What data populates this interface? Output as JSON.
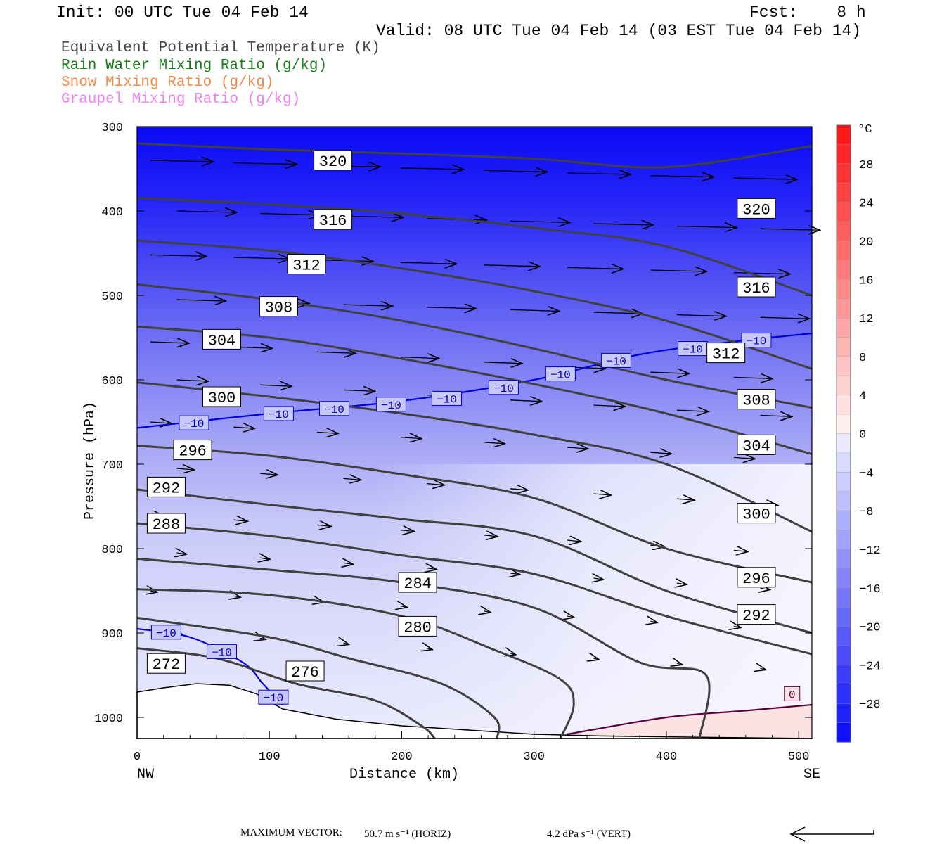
{
  "header": {
    "init": "Init: 00 UTC Tue 04 Feb 14",
    "fcst": "Fcst:    8 h",
    "valid": "Valid: 08 UTC Tue 04 Feb 14 (03 EST Tue 04 Feb 14)"
  },
  "legend": [
    {
      "label": "Equivalent Potential Temperature (K)",
      "color": "#444444"
    },
    {
      "label": "Rain Water Mixing Ratio (g/kg)",
      "color": "#1a7f1a"
    },
    {
      "label": "Snow Mixing Ratio (g/kg)",
      "color": "#f08a4b"
    },
    {
      "label": "Graupel Mixing Ratio (g/kg)",
      "color": "#ee82ee"
    }
  ],
  "chart_data": {
    "type": "cross-section",
    "xlabel": "Distance (km)",
    "ylabel": "Pressure (hPa)",
    "xlim": [
      0,
      510
    ],
    "ylim": [
      1025,
      300
    ],
    "x_ticks": [
      "0",
      "100",
      "200",
      "300",
      "400",
      "500"
    ],
    "x_tick_values": [
      0,
      100,
      200,
      300,
      400,
      500
    ],
    "y_ticks": [
      "300",
      "400",
      "500",
      "600",
      "700",
      "800",
      "900",
      "1000"
    ],
    "y_tick_values": [
      300,
      400,
      500,
      600,
      700,
      800,
      900,
      1000
    ],
    "left_end_label": "NW",
    "right_end_label": "SE",
    "colorbar": {
      "unit": "°C",
      "labels": [
        "28",
        "24",
        "20",
        "16",
        "12",
        "8",
        "4",
        "0",
        "−4",
        "−8",
        "−12",
        "−16",
        "−20",
        "−24",
        "−28"
      ],
      "label_values": [
        28,
        24,
        20,
        16,
        12,
        8,
        4,
        0,
        -4,
        -8,
        -12,
        -16,
        -20,
        -24,
        -28
      ],
      "range": [
        -32,
        32
      ]
    },
    "theta_e_contours": [
      {
        "label": "320",
        "points": [
          [
            0,
            320
          ],
          [
            100,
            327
          ],
          [
            200,
            332
          ],
          [
            300,
            338
          ],
          [
            400,
            348
          ],
          [
            510,
            323
          ]
        ]
      },
      {
        "label": "316",
        "points": [
          [
            0,
            385
          ],
          [
            100,
            392
          ],
          [
            200,
            403
          ],
          [
            300,
            420
          ],
          [
            400,
            442
          ],
          [
            510,
            500
          ]
        ]
      },
      {
        "label": "312",
        "points": [
          [
            0,
            435
          ],
          [
            100,
            447
          ],
          [
            200,
            468
          ],
          [
            300,
            495
          ],
          [
            400,
            530
          ],
          [
            510,
            587
          ]
        ]
      },
      {
        "label": "308",
        "points": [
          [
            0,
            487
          ],
          [
            100,
            505
          ],
          [
            200,
            530
          ],
          [
            300,
            563
          ],
          [
            400,
            600
          ],
          [
            510,
            633
          ]
        ]
      },
      {
        "label": "304",
        "points": [
          [
            0,
            537
          ],
          [
            100,
            550
          ],
          [
            200,
            575
          ],
          [
            300,
            605
          ],
          [
            400,
            640
          ],
          [
            510,
            688
          ]
        ]
      },
      {
        "label": "300",
        "points": [
          [
            0,
            603
          ],
          [
            100,
            620
          ],
          [
            200,
            640
          ],
          [
            300,
            665
          ],
          [
            400,
            700
          ],
          [
            510,
            780
          ]
        ]
      },
      {
        "label": "296",
        "points": [
          [
            0,
            678
          ],
          [
            100,
            690
          ],
          [
            200,
            712
          ],
          [
            300,
            740
          ],
          [
            400,
            800
          ],
          [
            510,
            840
          ]
        ]
      },
      {
        "label": "292",
        "points": [
          [
            0,
            730
          ],
          [
            100,
            748
          ],
          [
            200,
            765
          ],
          [
            300,
            785
          ],
          [
            400,
            850
          ],
          [
            510,
            900
          ]
        ]
      },
      {
        "label": "288",
        "points": [
          [
            0,
            770
          ],
          [
            100,
            785
          ],
          [
            200,
            808
          ],
          [
            300,
            830
          ],
          [
            400,
            880
          ],
          [
            510,
            925
          ]
        ]
      },
      {
        "label": "284",
        "points": [
          [
            0,
            812
          ],
          [
            100,
            825
          ],
          [
            200,
            840
          ],
          [
            300,
            870
          ],
          [
            380,
            935
          ],
          [
            430,
            950
          ],
          [
            425,
            1025
          ]
        ]
      },
      {
        "label": "280",
        "points": [
          [
            0,
            848
          ],
          [
            100,
            855
          ],
          [
            200,
            880
          ],
          [
            270,
            920
          ],
          [
            320,
            955
          ],
          [
            330,
            985
          ],
          [
            320,
            1025
          ]
        ]
      },
      {
        "label": "276",
        "points": [
          [
            0,
            882
          ],
          [
            100,
            905
          ],
          [
            160,
            930
          ],
          [
            230,
            960
          ],
          [
            270,
            1000
          ],
          [
            272,
            1025
          ]
        ]
      },
      {
        "label": "272",
        "points": [
          [
            0,
            918
          ],
          [
            60,
            930
          ],
          [
            120,
            960
          ],
          [
            180,
            980
          ],
          [
            215,
            1010
          ],
          [
            225,
            1025
          ]
        ]
      }
    ],
    "theta_e_label_positions": [
      {
        "label": "320",
        "x": 148,
        "p": 340
      },
      {
        "label": "320",
        "x": 468,
        "p": 397
      },
      {
        "label": "316",
        "x": 148,
        "p": 410
      },
      {
        "label": "316",
        "x": 468,
        "p": 490
      },
      {
        "label": "312",
        "x": 128,
        "p": 463
      },
      {
        "label": "312",
        "x": 445,
        "p": 568
      },
      {
        "label": "308",
        "x": 107,
        "p": 513
      },
      {
        "label": "308",
        "x": 468,
        "p": 623
      },
      {
        "label": "304",
        "x": 64,
        "p": 552
      },
      {
        "label": "304",
        "x": 468,
        "p": 677
      },
      {
        "label": "300",
        "x": 64,
        "p": 620
      },
      {
        "label": "300",
        "x": 468,
        "p": 758
      },
      {
        "label": "296",
        "x": 42,
        "p": 683
      },
      {
        "label": "296",
        "x": 468,
        "p": 834
      },
      {
        "label": "292",
        "x": 22,
        "p": 727
      },
      {
        "label": "292",
        "x": 468,
        "p": 878
      },
      {
        "label": "288",
        "x": 22,
        "p": 770
      },
      {
        "label": "284",
        "x": 212,
        "p": 840
      },
      {
        "label": "280",
        "x": 212,
        "p": 892
      },
      {
        "label": "276",
        "x": 127,
        "p": 945
      },
      {
        "label": "272",
        "x": 22,
        "p": 936
      }
    ],
    "temp_contours": [
      {
        "label": "−10",
        "color": "#0000dd",
        "points": [
          [
            0,
            657
          ],
          [
            100,
            640
          ],
          [
            200,
            625
          ],
          [
            300,
            600
          ],
          [
            380,
            570
          ],
          [
            450,
            555
          ],
          [
            510,
            545
          ]
        ]
      },
      {
        "label": "−10",
        "color": "#0000dd",
        "points": [
          [
            0,
            895
          ],
          [
            40,
            905
          ],
          [
            80,
            935
          ],
          [
            95,
            960
          ],
          [
            110,
            985
          ]
        ]
      },
      {
        "label": "0",
        "color": "#5a0040",
        "points": [
          [
            325,
            1020
          ],
          [
            400,
            1000
          ],
          [
            460,
            992
          ],
          [
            510,
            985
          ]
        ]
      }
    ],
    "temp_label_positions": [
      {
        "label": "−10",
        "x": 43,
        "p": 651
      },
      {
        "label": "−10",
        "x": 107,
        "p": 640
      },
      {
        "label": "−10",
        "x": 149,
        "p": 634
      },
      {
        "label": "−10",
        "x": 192,
        "p": 629
      },
      {
        "label": "−10",
        "x": 234,
        "p": 622
      },
      {
        "label": "−10",
        "x": 277,
        "p": 609
      },
      {
        "label": "−10",
        "x": 320,
        "p": 593
      },
      {
        "label": "−10",
        "x": 362,
        "p": 577
      },
      {
        "label": "−10",
        "x": 420,
        "p": 563
      },
      {
        "label": "−10",
        "x": 468,
        "p": 553
      },
      {
        "label": "−10",
        "x": 22,
        "p": 899
      },
      {
        "label": "−10",
        "x": 64,
        "p": 922
      },
      {
        "label": "−10",
        "x": 103,
        "p": 976
      },
      {
        "label": "0",
        "x": 495,
        "p": 972
      }
    ],
    "terrain": [
      [
        0,
        970
      ],
      [
        20,
        965
      ],
      [
        45,
        960
      ],
      [
        70,
        962
      ],
      [
        90,
        972
      ],
      [
        110,
        990
      ],
      [
        150,
        1002
      ],
      [
        200,
        1010
      ],
      [
        250,
        1015
      ],
      [
        300,
        1020
      ],
      [
        350,
        1022
      ],
      [
        400,
        1023
      ],
      [
        450,
        1024
      ],
      [
        510,
        1025
      ]
    ]
  },
  "wind_vectors_note": "",
  "footer": {
    "max_vector_label": "MAXIMUM VECTOR:",
    "horiz": "50.7 m s⁻¹ (HORIZ)",
    "vert": "4.2 dPa s⁻¹ (VERT)"
  },
  "colors": {
    "contour": "#404040",
    "cold": "#1414ff",
    "warm": "#ff1a1a"
  }
}
